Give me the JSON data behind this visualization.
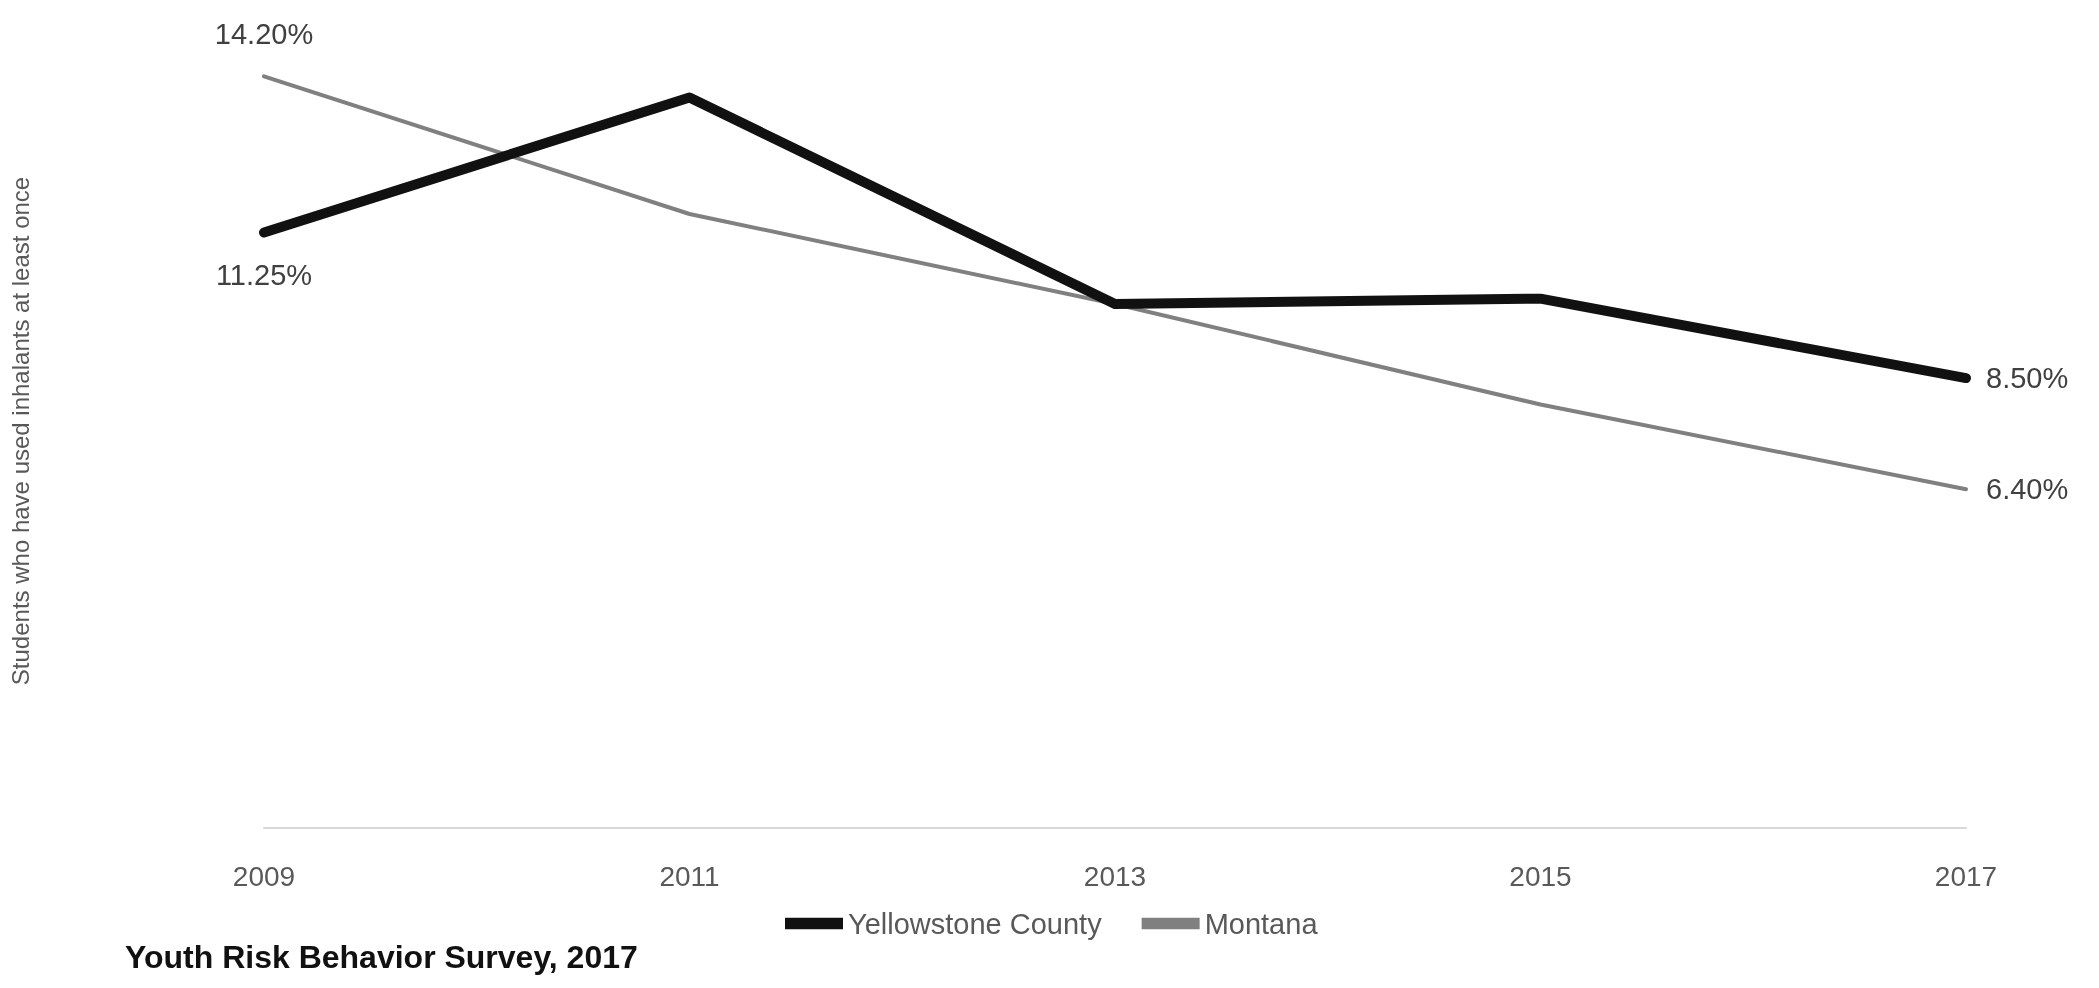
{
  "chart_data": {
    "type": "line",
    "title": "Youth Risk Behavior Survey, 2017",
    "ylabel": "Students who have used inhalants at least once",
    "categories": [
      "2009",
      "2011",
      "2013",
      "2015",
      "2017"
    ],
    "series": [
      {
        "name": "Yellowstone County",
        "color": "#111111",
        "values": [
          11.25,
          13.8,
          9.9,
          10.0,
          8.5
        ],
        "value_labels": [
          "11.25%",
          null,
          null,
          null,
          "8.50%"
        ]
      },
      {
        "name": "Montana",
        "color": "#808080",
        "values": [
          14.2,
          11.6,
          9.9,
          8.0,
          6.4
        ],
        "value_labels": [
          "14.20%",
          null,
          null,
          null,
          "6.40%"
        ]
      }
    ],
    "grid": false,
    "legend": "bottom",
    "marker": "none",
    "line_style": "solid"
  }
}
